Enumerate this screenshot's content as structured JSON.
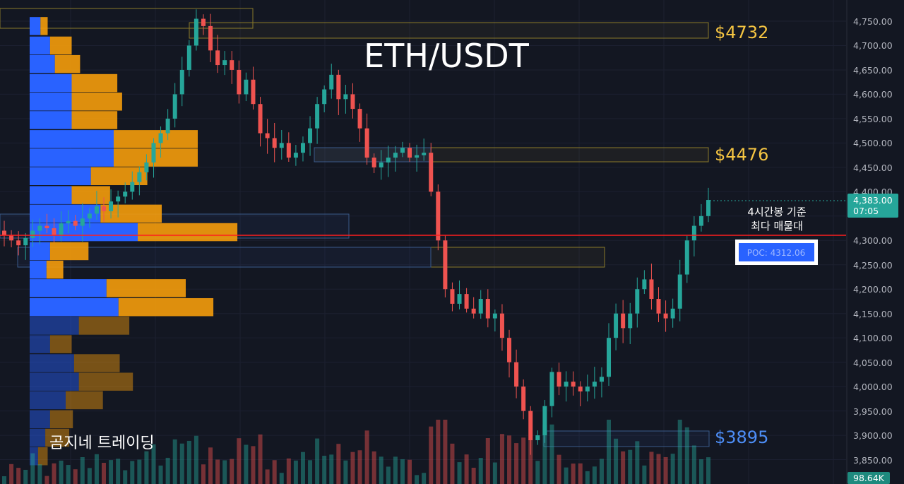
{
  "title": "ETH/USDT",
  "watermark": "곰지네 트레이딩",
  "annotation": {
    "line1": "4시간봉 기준",
    "line2": "최다 매물대"
  },
  "poc": {
    "label": "POC: 4312.06",
    "price": 4312.06
  },
  "levels": [
    {
      "label": "$4732",
      "price": 4732,
      "color": "#f5c542"
    },
    {
      "label": "$4476",
      "price": 4476,
      "color": "#f5c542"
    },
    {
      "label": "$3895",
      "price": 3895,
      "color": "#4d8ef7"
    }
  ],
  "price_axis": {
    "ticks": [
      "4,750.00",
      "4,700.00",
      "4,650.00",
      "4,600.00",
      "4,550.00",
      "4,500.00",
      "4,450.00",
      "4,400.00",
      "4,300.00",
      "4,250.00",
      "4,200.00",
      "4,150.00",
      "4,100.00",
      "4,050.00",
      "4,000.00",
      "3,950.00",
      "3,900.00",
      "3,850.00"
    ],
    "current_price": "4,383.00",
    "countdown": "07:05",
    "volume_label": "98.64K"
  },
  "colors": {
    "background": "#131722",
    "bull": "#26a69a",
    "bear": "#ef5350",
    "poc_line": "#ff1e1e",
    "profile_buy": "#2962ff",
    "profile_sell": "#f59c0b",
    "level_gold": "#f5c542",
    "level_blue": "#4d8ef7"
  },
  "chart_data": {
    "type": "candlestick",
    "title": "ETH/USDT",
    "timeframe": "4H",
    "ylim": [
      3830,
      4790
    ],
    "close_approx": [
      4310,
      4300,
      4290,
      4305,
      4320,
      4330,
      4325,
      4310,
      4335,
      4340,
      4330,
      4345,
      4355,
      4370,
      4360,
      4380,
      4390,
      4400,
      4420,
      4440,
      4460,
      4500,
      4520,
      4550,
      4600,
      4650,
      4700,
      4755,
      4740,
      4690,
      4660,
      4670,
      4650,
      4600,
      4630,
      4580,
      4520,
      4510,
      4490,
      4500,
      4470,
      4480,
      4500,
      4530,
      4580,
      4610,
      4640,
      4590,
      4600,
      4570,
      4530,
      4470,
      4450,
      4460,
      4470,
      4480,
      4490,
      4470,
      4475,
      4480,
      4400,
      4300,
      4200,
      4170,
      4190,
      4160,
      4150,
      4180,
      4140,
      4150,
      4100,
      4050,
      4000,
      3950,
      3890,
      3900,
      3960,
      4030,
      4000,
      4010,
      4000,
      3990,
      4000,
      4010,
      4020,
      4100,
      4150,
      4120,
      4150,
      4200,
      4220,
      4180,
      4150,
      4140,
      4160,
      4230,
      4300,
      4330,
      4350,
      4383
    ],
    "volume_profile": {
      "poc": 4312.06,
      "rows": [
        {
          "price": 4740,
          "buy": 0.09,
          "sell": 0.06
        },
        {
          "price": 4700,
          "buy": 0.17,
          "sell": 0.18
        },
        {
          "price": 4662,
          "buy": 0.21,
          "sell": 0.21
        },
        {
          "price": 4623,
          "buy": 0.35,
          "sell": 0.38
        },
        {
          "price": 4585,
          "buy": 0.35,
          "sell": 0.42
        },
        {
          "price": 4547,
          "buy": 0.35,
          "sell": 0.38
        },
        {
          "price": 4508,
          "buy": 0.7,
          "sell": 0.7
        },
        {
          "price": 4470,
          "buy": 0.7,
          "sell": 0.7
        },
        {
          "price": 4432,
          "buy": 0.51,
          "sell": 0.47
        },
        {
          "price": 4393,
          "buy": 0.35,
          "sell": 0.32
        },
        {
          "price": 4355,
          "buy": 0.59,
          "sell": 0.51
        },
        {
          "price": 4317,
          "buy": 0.9,
          "sell": 0.83
        },
        {
          "price": 4278,
          "buy": 0.17,
          "sell": 0.32
        },
        {
          "price": 4240,
          "buy": 0.14,
          "sell": 0.14
        },
        {
          "price": 4202,
          "buy": 0.64,
          "sell": 0.66
        },
        {
          "price": 4163,
          "buy": 0.74,
          "sell": 0.79
        },
        {
          "price": 4125,
          "buy": 0.41,
          "sell": 0.42
        },
        {
          "price": 4087,
          "buy": 0.17,
          "sell": 0.18
        },
        {
          "price": 4048,
          "buy": 0.37,
          "sell": 0.38
        },
        {
          "price": 4010,
          "buy": 0.41,
          "sell": 0.45
        },
        {
          "price": 3972,
          "buy": 0.3,
          "sell": 0.31
        },
        {
          "price": 3933,
          "buy": 0.17,
          "sell": 0.19
        },
        {
          "price": 3895,
          "buy": 0.13,
          "sell": 0.2
        },
        {
          "price": 3857,
          "buy": 0.07,
          "sell": 0.08
        }
      ]
    }
  }
}
